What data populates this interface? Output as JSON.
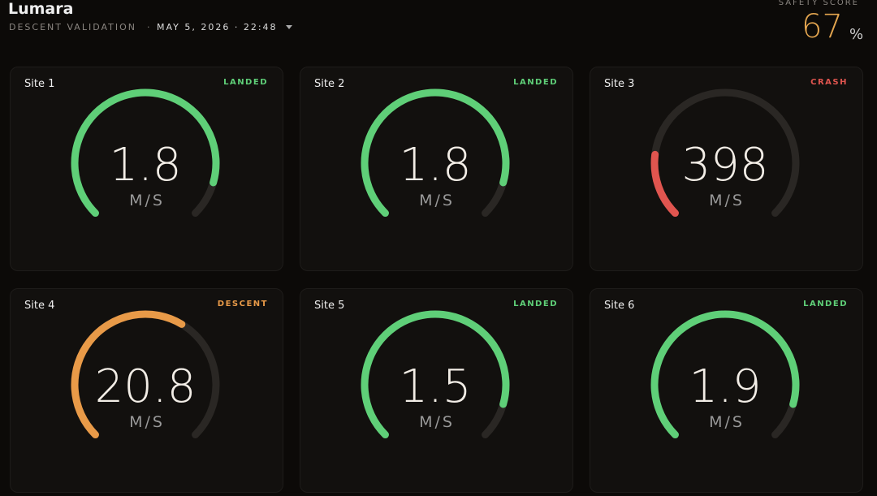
{
  "header": {
    "title": "Lumara",
    "subtitle": "DESCENT VALIDATION",
    "date": "MAY 5, 2026 · 22:48"
  },
  "safety_score": {
    "label": "SAFETY SCORE",
    "value": 67,
    "unit": "%"
  },
  "sites": [
    {
      "name": "Site 1",
      "status": "LANDED",
      "value": 1.8,
      "unit": "M/S",
      "color": "#5fcf78"
    },
    {
      "name": "Site 2",
      "status": "LANDED",
      "value": 1.8,
      "unit": "M/S",
      "color": "#5fcf78"
    },
    {
      "name": "Site 3",
      "status": "CRASH",
      "value": 398,
      "unit": "M/S",
      "color": "#e0554f"
    },
    {
      "name": "Site 4",
      "status": "DESCENT",
      "value": 20.8,
      "unit": "M/S",
      "color": "#e89a48"
    },
    {
      "name": "Site 5",
      "status": "LANDED",
      "value": 1.5,
      "unit": "M/S",
      "color": "#5fcf78"
    },
    {
      "name": "Site 6",
      "status": "LANDED",
      "value": 1.9,
      "unit": "M/S",
      "color": "#5fcf78"
    }
  ]
}
